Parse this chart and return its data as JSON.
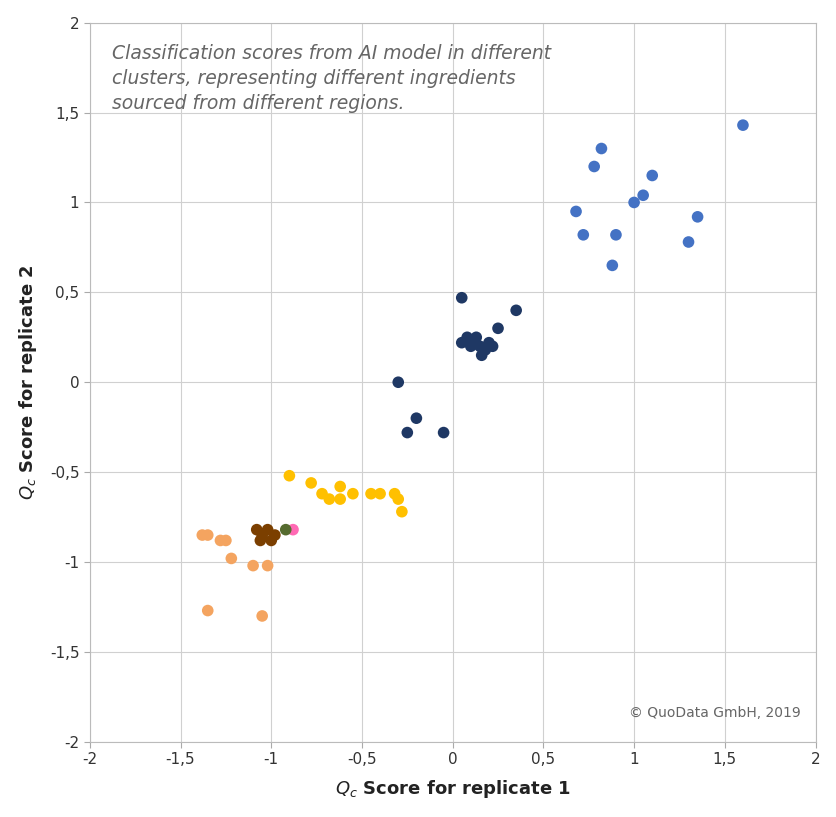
{
  "title": "Classification scores from AI model in different\nclusters, representing different ingredients\nsourced from different regions.",
  "xlabel": "Q_c Score for replicate 1",
  "ylabel": "Q_c Score for replicate 2",
  "xlim": [
    -2,
    2
  ],
  "ylim": [
    -2,
    2
  ],
  "xticks": [
    -2,
    -1.5,
    -1,
    -0.5,
    0,
    0.5,
    1,
    1.5,
    2
  ],
  "yticks": [
    -2,
    -1.5,
    -1,
    -0.5,
    0,
    0.5,
    1,
    1.5,
    2
  ],
  "xtick_labels": [
    "-2",
    "-1,5",
    "-1",
    "-0,5",
    "0",
    "0,5",
    "1",
    "1,5",
    "2"
  ],
  "ytick_labels": [
    "-2",
    "-1,5",
    "-1",
    "-0,5",
    "0",
    "0,5",
    "1",
    "1,5",
    "2"
  ],
  "copyright": "© QuoData GmbH, 2019",
  "clusters": [
    {
      "color": "#4472C4",
      "points": [
        [
          0.68,
          0.95
        ],
        [
          0.72,
          0.82
        ],
        [
          0.78,
          1.2
        ],
        [
          0.82,
          1.3
        ],
        [
          0.88,
          0.65
        ],
        [
          0.9,
          0.82
        ],
        [
          1.0,
          1.0
        ],
        [
          1.05,
          1.04
        ],
        [
          1.1,
          1.15
        ],
        [
          1.3,
          0.78
        ],
        [
          1.35,
          0.92
        ],
        [
          1.6,
          1.43
        ]
      ]
    },
    {
      "color": "#1F3864",
      "points": [
        [
          0.05,
          0.22
        ],
        [
          0.08,
          0.25
        ],
        [
          0.1,
          0.2
        ],
        [
          0.12,
          0.22
        ],
        [
          0.13,
          0.25
        ],
        [
          0.15,
          0.2
        ],
        [
          0.16,
          0.15
        ],
        [
          0.18,
          0.18
        ],
        [
          0.2,
          0.22
        ],
        [
          0.22,
          0.2
        ],
        [
          0.25,
          0.3
        ],
        [
          0.05,
          0.47
        ],
        [
          0.35,
          0.4
        ],
        [
          -0.3,
          0.0
        ],
        [
          -0.2,
          -0.2
        ],
        [
          -0.25,
          -0.28
        ],
        [
          -0.05,
          -0.28
        ]
      ]
    },
    {
      "color": "#FFC000",
      "points": [
        [
          -0.9,
          -0.52
        ],
        [
          -0.78,
          -0.56
        ],
        [
          -0.72,
          -0.62
        ],
        [
          -0.68,
          -0.65
        ],
        [
          -0.62,
          -0.58
        ],
        [
          -0.62,
          -0.65
        ],
        [
          -0.55,
          -0.62
        ],
        [
          -0.45,
          -0.62
        ],
        [
          -0.4,
          -0.62
        ],
        [
          -0.32,
          -0.62
        ],
        [
          -0.3,
          -0.65
        ],
        [
          -0.28,
          -0.72
        ]
      ]
    },
    {
      "color": "#7B3F00",
      "points": [
        [
          -1.08,
          -0.82
        ],
        [
          -1.05,
          -0.85
        ],
        [
          -1.02,
          -0.82
        ],
        [
          -1.0,
          -0.88
        ],
        [
          -0.98,
          -0.85
        ],
        [
          -1.06,
          -0.88
        ]
      ]
    },
    {
      "color": "#F4A460",
      "points": [
        [
          -1.38,
          -0.85
        ],
        [
          -1.35,
          -0.85
        ],
        [
          -1.28,
          -0.88
        ],
        [
          -1.25,
          -0.88
        ],
        [
          -1.22,
          -0.98
        ],
        [
          -1.1,
          -1.02
        ],
        [
          -1.02,
          -1.02
        ],
        [
          -1.05,
          -1.3
        ],
        [
          -1.35,
          -1.27
        ]
      ]
    },
    {
      "color": "#FF69B4",
      "points": [
        [
          -0.88,
          -0.82
        ]
      ]
    },
    {
      "color": "#556B2F",
      "points": [
        [
          -0.92,
          -0.82
        ]
      ]
    }
  ],
  "background_color": "#FFFFFF",
  "grid_color": "#D0D0D0",
  "marker_size": 70,
  "title_fontsize": 13.5,
  "axis_label_fontsize": 13,
  "tick_fontsize": 11,
  "copyright_fontsize": 10,
  "figsize": [
    8.37,
    8.17
  ],
  "dpi": 100
}
